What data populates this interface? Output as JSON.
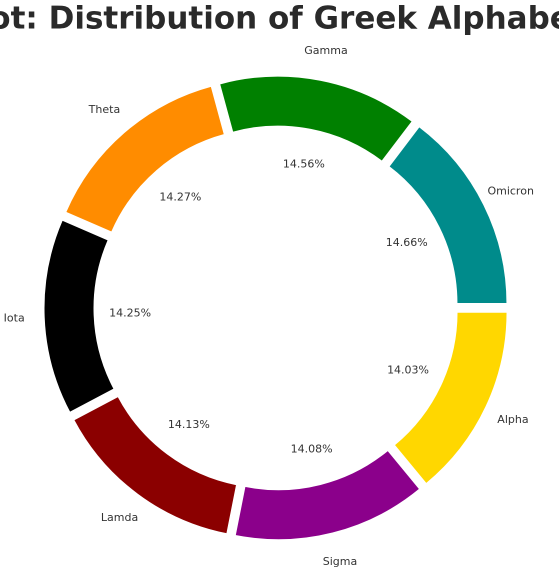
{
  "chart_data": {
    "type": "pie",
    "title": "Plot: Distribution of Greek Alphabets",
    "categories": [
      "Omicron",
      "Gamma",
      "Theta",
      "Iota",
      "Lamda",
      "Sigma",
      "Alpha"
    ],
    "values": [
      14.66,
      14.56,
      14.27,
      14.25,
      14.13,
      14.08,
      14.03
    ],
    "value_labels": [
      "14.66%",
      "14.56%",
      "14.27%",
      "14.25%",
      "14.13%",
      "14.08%",
      "14.03%"
    ],
    "colors": [
      "#008b8b",
      "#008000",
      "#ff8c00",
      "#000000",
      "#8b0000",
      "#8b008b",
      "#ffd700"
    ]
  }
}
